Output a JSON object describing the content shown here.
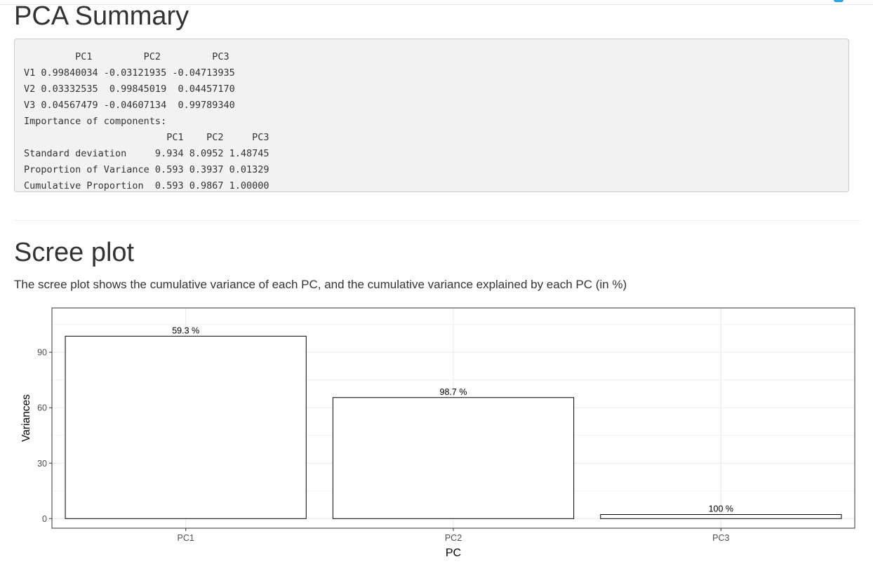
{
  "page": {
    "title": "PCA Summary",
    "pca_output": {
      "rotation": {
        "header": "         PC1         PC2         PC3",
        "rows": [
          "V1 0.99840034 -0.03121935 -0.04713935",
          "V2 0.03332535  0.99845019  0.04457170",
          "V3 0.04567479 -0.04607134  0.99789340"
        ]
      },
      "importance_title": "Importance of components:",
      "importance_header": "                         PC1    PC2     PC3",
      "importance_rows": [
        "Standard deviation     9.934 8.0952 1.48745",
        "Proportion of Variance 0.593 0.3937 0.01329",
        "Cumulative Proportion  0.593 0.9867 1.00000"
      ]
    },
    "scree_heading": "Scree plot",
    "scree_description": "The scree plot shows the cumulative variance of each PC, and the cumulative variance explained by each PC (in %)"
  },
  "chart_data": {
    "type": "bar",
    "categories": [
      "PC1",
      "PC2",
      "PC3"
    ],
    "values": [
      98.7,
      65.5,
      2.2
    ],
    "labels": [
      "59.3 %",
      "98.7 %",
      "100 %"
    ],
    "xlabel": "PC",
    "ylabel": "Variances",
    "yticks": [
      0,
      30,
      60,
      90
    ],
    "ylim": [
      -5.2,
      114
    ],
    "grid": true,
    "bar_fill": "#ffffff",
    "bar_stroke": "#000000",
    "grid_color": "#ebebeb"
  }
}
